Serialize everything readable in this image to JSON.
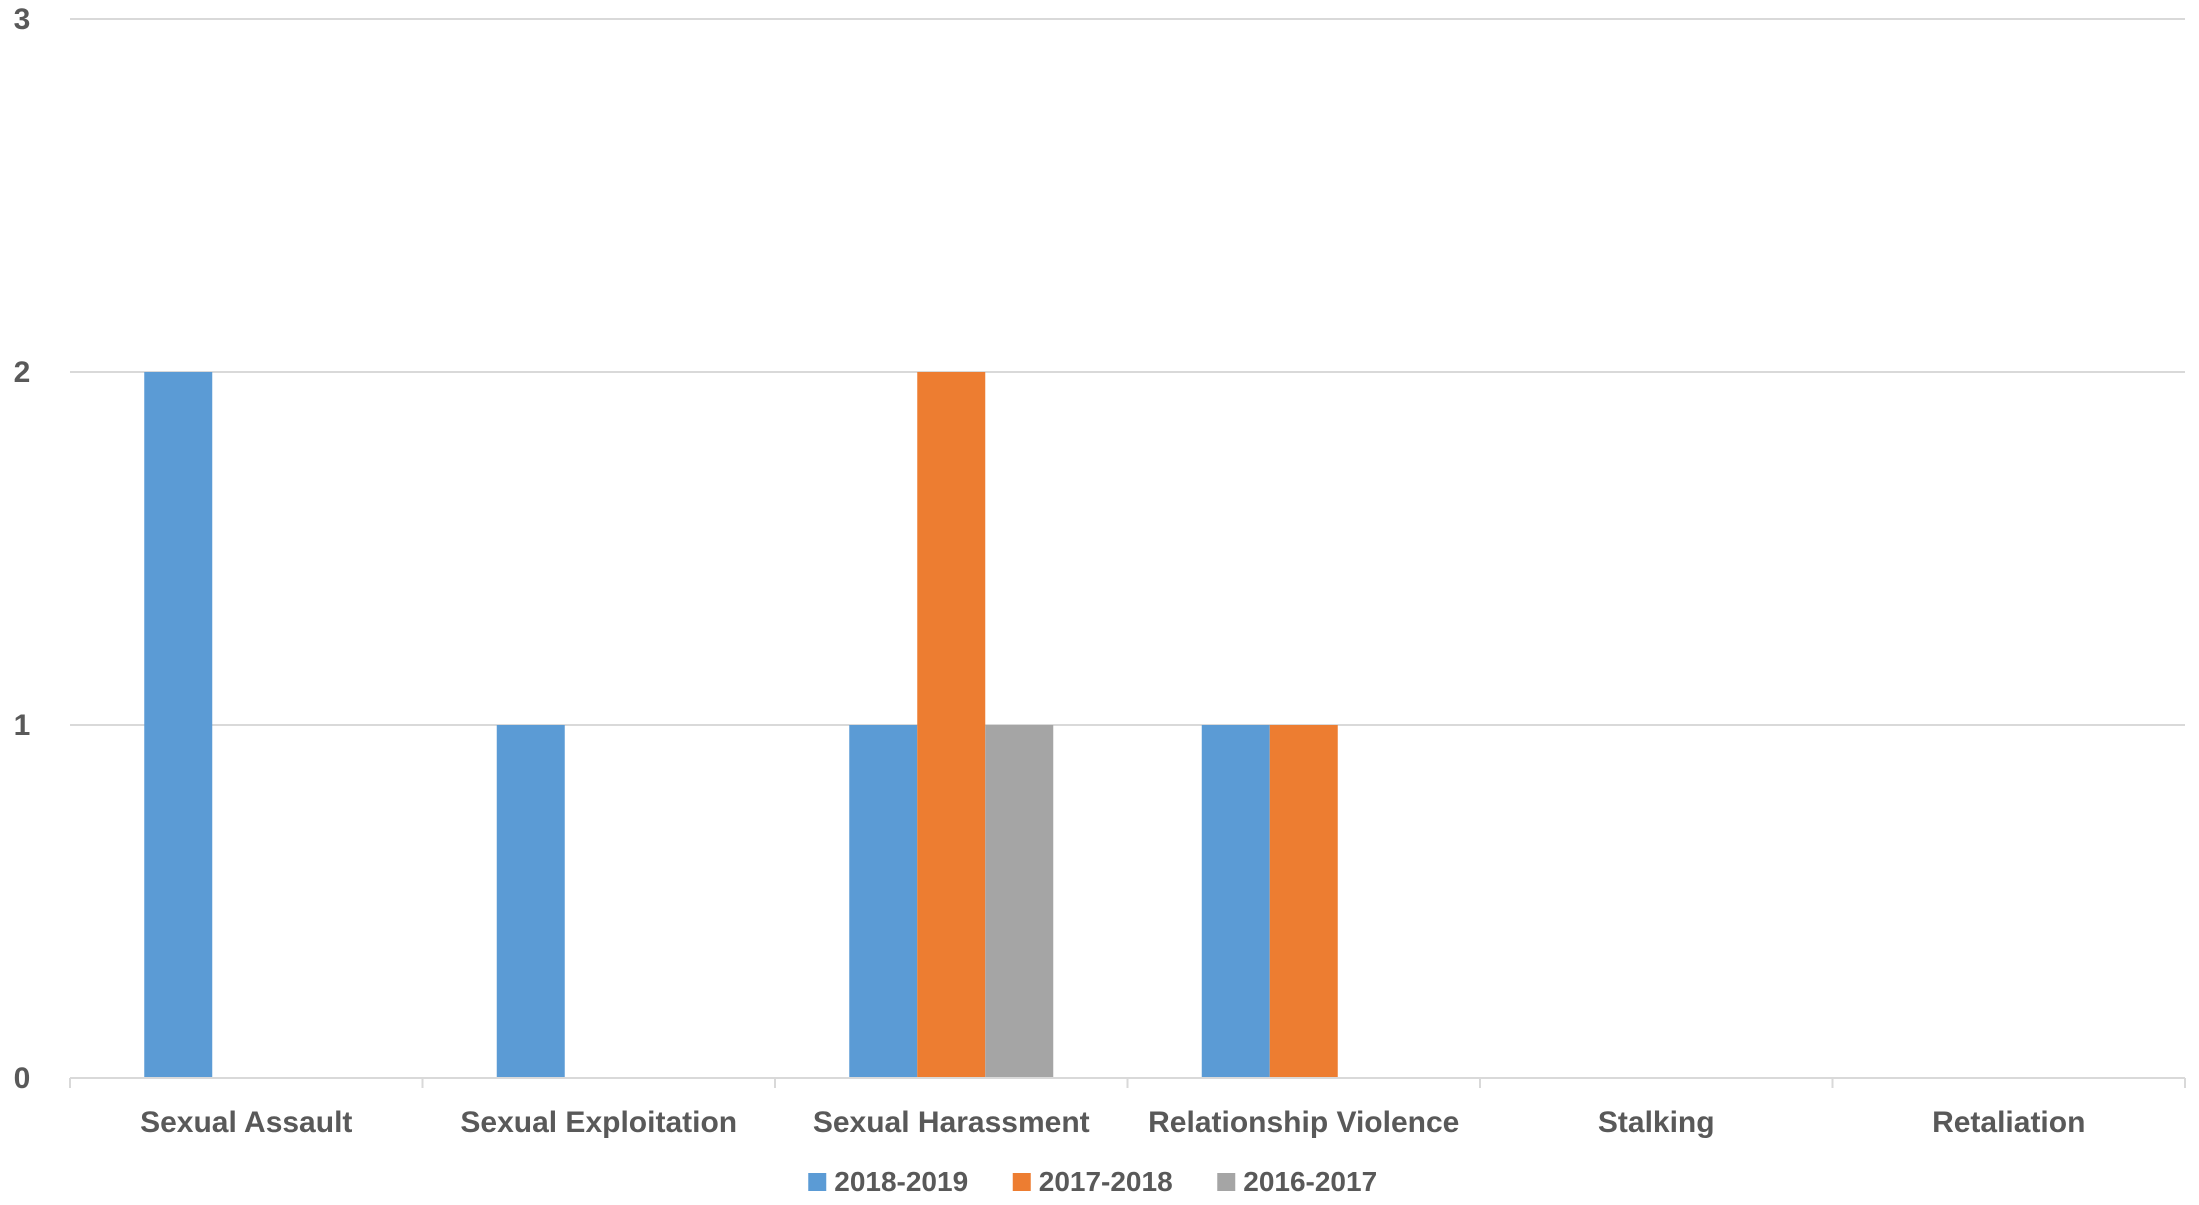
{
  "chart_data": {
    "type": "bar",
    "title": "",
    "xlabel": "",
    "ylabel": "",
    "categories": [
      "Sexual Assault",
      "Sexual Exploitation",
      "Sexual Harassment",
      "Relationship Violence",
      "Stalking",
      "Retaliation"
    ],
    "series": [
      {
        "name": "2018-2019",
        "color": "#5B9BD5",
        "values": [
          2,
          1,
          1,
          1,
          0,
          0
        ]
      },
      {
        "name": "2017-2018",
        "color": "#ED7D31",
        "values": [
          0,
          0,
          2,
          1,
          0,
          0
        ]
      },
      {
        "name": "2016-2017",
        "color": "#A5A5A5",
        "values": [
          0,
          0,
          1,
          0,
          0,
          0
        ]
      }
    ],
    "ylim": [
      0,
      3
    ],
    "yticks": [
      "0",
      "1",
      "2",
      "3"
    ],
    "grid": true,
    "legend_position": "bottom"
  }
}
